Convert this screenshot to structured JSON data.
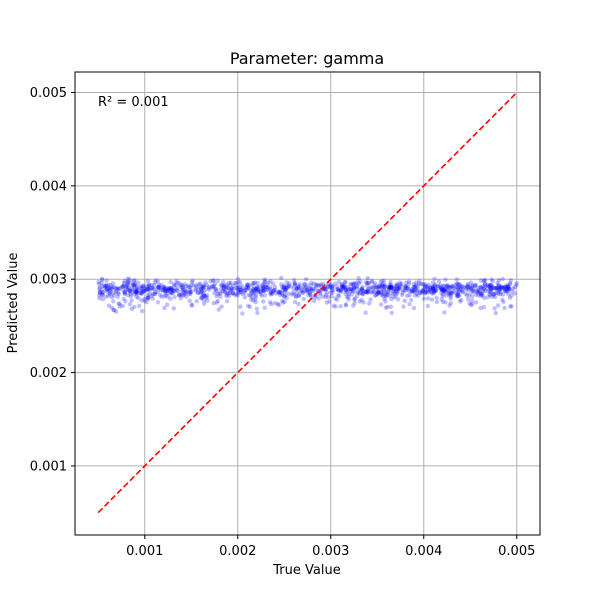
{
  "chart_data": {
    "type": "scatter",
    "title": "Parameter: gamma",
    "xlabel": "True Value",
    "ylabel": "Predicted Value",
    "xlim": [
      0.00025,
      0.00525
    ],
    "ylim": [
      0.00026,
      0.00522
    ],
    "x_ticks": [
      0.001,
      0.002,
      0.003,
      0.004,
      0.005
    ],
    "x_tick_labels": [
      "0.001",
      "0.002",
      "0.003",
      "0.004",
      "0.005"
    ],
    "y_ticks": [
      0.001,
      0.002,
      0.003,
      0.004,
      0.005
    ],
    "y_tick_labels": [
      "0.001",
      "0.002",
      "0.003",
      "0.004",
      "0.005"
    ],
    "grid": true,
    "annotation": "R² = 0.001",
    "scatter": {
      "color": "#0000ff",
      "opacity": 0.25,
      "x_range": [
        0.0005,
        0.005
      ],
      "y_center": 0.0029,
      "y_spread_low": 0.00245,
      "y_spread_high": 0.00312,
      "n_points": 1200
    },
    "reference_line": {
      "color": "#ff0000",
      "style": "dashed",
      "points": [
        [
          0.0005,
          0.0005
        ],
        [
          0.005,
          0.005
        ]
      ]
    }
  }
}
